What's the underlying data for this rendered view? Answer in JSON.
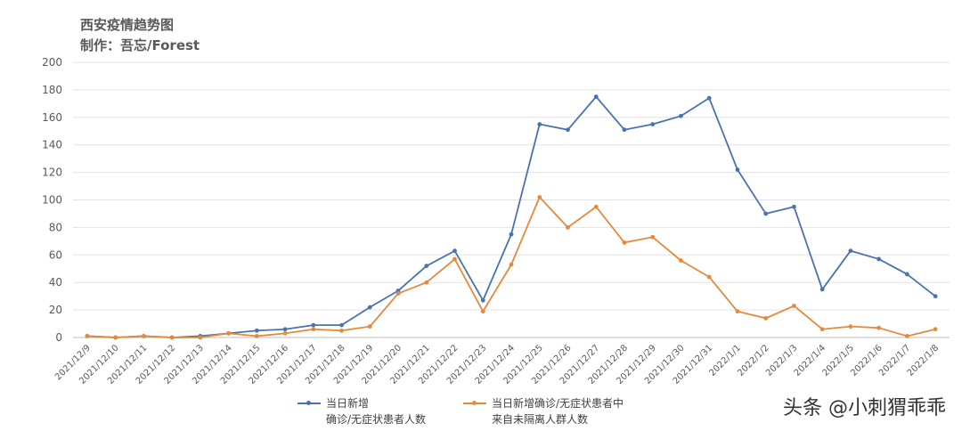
{
  "chart_data": {
    "type": "line",
    "title": "西安疫情趋势图",
    "subtitle": "制作：吾忘/Forest",
    "categories": [
      "2021/12/9",
      "2021/12/10",
      "2021/12/11",
      "2021/12/12",
      "2021/12/13",
      "2021/12/14",
      "2021/12/15",
      "2021/12/16",
      "2021/12/17",
      "2021/12/18",
      "2021/12/19",
      "2021/12/20",
      "2021/12/21",
      "2021/12/22",
      "2021/12/23",
      "2021/12/24",
      "2021/12/25",
      "2021/12/26",
      "2021/12/27",
      "2021/12/28",
      "2021/12/29",
      "2021/12/30",
      "2021/12/31",
      "2022/1/1",
      "2022/1/2",
      "2022/1/3",
      "2022/1/4",
      "2022/1/5",
      "2022/1/6",
      "2022/1/7",
      "2022/1/8"
    ],
    "series": [
      {
        "name": "当日新增确诊/无症状患者人数",
        "name_lines": [
          "当日新增",
          "确诊/无症状患者人数"
        ],
        "color": "#4a72b0",
        "values": [
          1,
          0,
          1,
          0,
          1,
          3,
          5,
          6,
          9,
          9,
          22,
          34,
          52,
          63,
          27,
          75,
          155,
          151,
          175,
          151,
          155,
          161,
          174,
          122,
          90,
          95,
          35,
          63,
          57,
          46,
          30
        ]
      },
      {
        "name": "当日新增确诊/无症状患者中来自未隔离人群人数",
        "name_lines": [
          "当日新增确诊/无症状患者中",
          "来自未隔离人群人数"
        ],
        "color": "#e58a3b",
        "values": [
          1,
          0,
          1,
          0,
          0,
          3,
          1,
          3,
          6,
          5,
          8,
          32,
          40,
          57,
          19,
          53,
          102,
          80,
          95,
          69,
          73,
          56,
          44,
          19,
          14,
          23,
          6,
          8,
          7,
          1,
          6
        ]
      }
    ],
    "ylim": [
      0,
      200
    ],
    "yticks": [
      0,
      20,
      40,
      60,
      80,
      100,
      120,
      140,
      160,
      180,
      200
    ],
    "grid": true,
    "legend_position": "bottom"
  },
  "watermark": "头条 @小刺猬乖乖"
}
